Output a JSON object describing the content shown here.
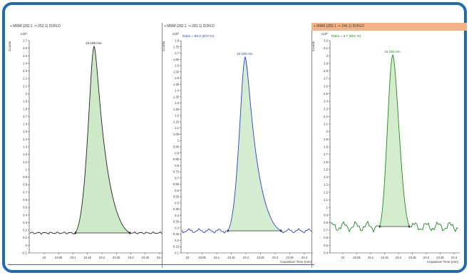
{
  "panels": [
    {
      "header": "+ MRM (282.1 -> 252.1) DON.D",
      "counts_label": "Counts",
      "exponent": "x10⁵",
      "ratio_text": "",
      "peak_label": "23.189 min.",
      "color": "#222222",
      "fill": "#cde9c8",
      "yticks": [
        "2.7",
        "2.6",
        "2.5",
        "2.4",
        "2.3",
        "2.2",
        "2.1",
        "2",
        "1.9",
        "1.8",
        "1.7",
        "1.6",
        "1.5",
        "1.4",
        "1.3",
        "1.2",
        "1.1",
        "1",
        "0.9",
        "0.8",
        "0.7",
        "0.6",
        "0.5",
        "0.4",
        "0.3",
        "0.2",
        "0.1",
        "0",
        "-0.1"
      ],
      "xticks": [
        "23",
        "23.05",
        "23.1",
        "23.15",
        "23.2",
        "23.25",
        "23.3",
        "23.35",
        "23.4"
      ],
      "xlabel": ""
    },
    {
      "header": "+ MRM (282.1 -> 281.1) DON.D",
      "counts_label": "Counts",
      "exponent": "x10³",
      "ratio_text": "Ratio = 66.0 (872 %)",
      "peak_label": "23.189 min.",
      "color": "#2a3ed1",
      "fill": "#d4ecd0",
      "yticks": [
        "1.8",
        "1.75",
        "1.7",
        "1.65",
        "1.6",
        "1.55",
        "1.5",
        "1.45",
        "1.4",
        "1.35",
        "1.3",
        "1.25",
        "1.2",
        "1.15",
        "1.1",
        "1.05",
        "1",
        "0.95",
        "0.9",
        "0.85",
        "0.8",
        "0.75",
        "0.7",
        "0.65",
        "0.6",
        "0.55",
        "0.5",
        "0.45",
        "0.4",
        "0.35",
        "0.3",
        "0.25",
        "0.2",
        "0.15",
        "0.1"
      ],
      "xticks": [
        "23",
        "23.05",
        "23.1",
        "23.15",
        "23.2",
        "23.25",
        "23.3",
        "23.35",
        "23.4"
      ],
      "xlabel": "Acquisition Time (min)"
    },
    {
      "header": "+ MRM (282.1 -> 246.1) DON.D",
      "counts_label": "Counts",
      "exponent": "x10³",
      "ratio_text": "Ratio = 3.7 (801 %)",
      "peak_label": "23.189 min.",
      "color": "#1e8a1e",
      "fill": "#d3edcc",
      "yticks": [
        "3.2",
        "3.1",
        "3",
        "2.9",
        "2.8",
        "2.7",
        "2.6",
        "2.5",
        "2.4",
        "2.3",
        "2.2",
        "2.1",
        "2",
        "1.9",
        "1.8",
        "1.7",
        "1.6",
        "1.5",
        "1.4",
        "1.3",
        "1.2",
        "1.1",
        "1",
        "0.9",
        "0.8",
        "0.7",
        "0.6",
        "0.5",
        "0.4"
      ],
      "xticks": [
        "23",
        "23.05",
        "23.1",
        "23.15",
        "23.2",
        "23.25",
        "23.3",
        "23.35",
        "23.4"
      ],
      "xlabel": "Acquisition Time (min)"
    }
  ]
}
